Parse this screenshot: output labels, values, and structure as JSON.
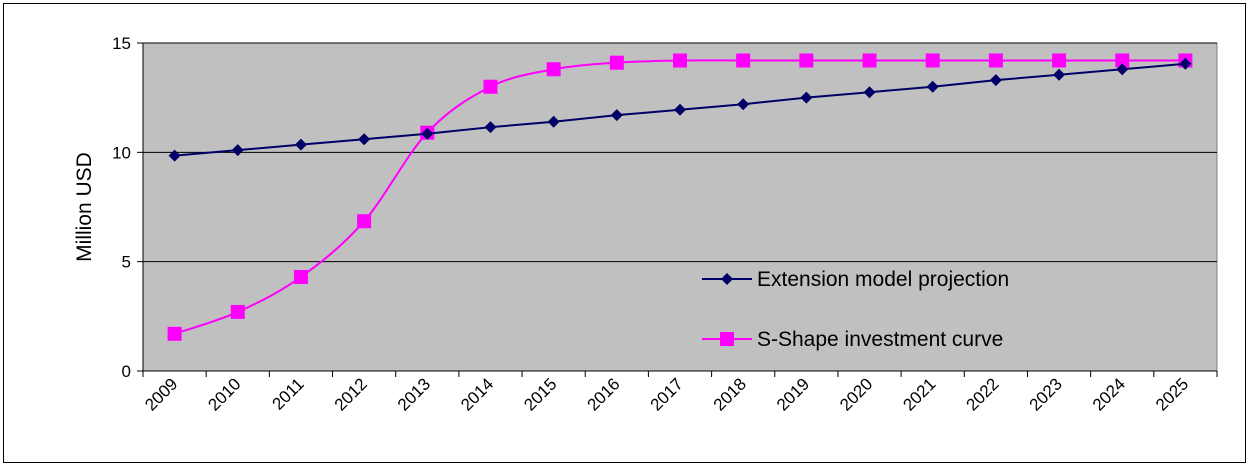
{
  "chart_data": {
    "type": "line",
    "title": "",
    "xlabel": "",
    "ylabel": "Million USD",
    "ylim": [
      0,
      15
    ],
    "yticks": [
      0,
      5,
      10,
      15
    ],
    "grid": "horizontal",
    "legend_position": "lower-right, inside plot",
    "categories": [
      "2009",
      "2010",
      "2011",
      "2012",
      "2013",
      "2014",
      "2015",
      "2016",
      "2017",
      "2018",
      "2019",
      "2020",
      "2021",
      "2022",
      "2023",
      "2024",
      "2025"
    ],
    "series": [
      {
        "name": "Extension model projection",
        "color": "#000066",
        "marker": "diamond",
        "values": [
          9.85,
          10.1,
          10.35,
          10.6,
          10.85,
          11.15,
          11.4,
          11.7,
          11.95,
          12.2,
          12.5,
          12.75,
          13.0,
          13.3,
          13.55,
          13.8,
          14.05
        ]
      },
      {
        "name": "S-Shape investment curve",
        "color": "#ff00ff",
        "marker": "square",
        "values": [
          1.7,
          2.7,
          4.3,
          6.85,
          10.9,
          13.0,
          13.8,
          14.1,
          14.2,
          14.2,
          14.2,
          14.2,
          14.2,
          14.2,
          14.2,
          14.2,
          14.2
        ]
      }
    ],
    "plot_background": "#c0c0c0"
  }
}
